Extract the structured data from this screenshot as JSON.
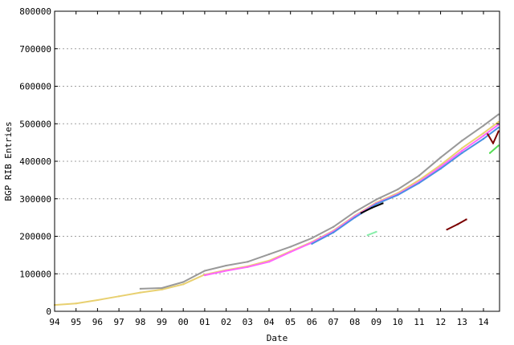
{
  "chart_data": {
    "type": "scatter",
    "title": "",
    "xlabel": "Date",
    "ylabel": "BGP RIB Entries",
    "xlim": [
      1994,
      2014.75
    ],
    "ylim": [
      0,
      800000
    ],
    "grid": "horizontal dashed",
    "x_ticks": [
      {
        "value": 1994,
        "label": "94"
      },
      {
        "value": 1995,
        "label": "95"
      },
      {
        "value": 1996,
        "label": "96"
      },
      {
        "value": 1997,
        "label": "97"
      },
      {
        "value": 1998,
        "label": "98"
      },
      {
        "value": 1999,
        "label": "99"
      },
      {
        "value": 2000,
        "label": "00"
      },
      {
        "value": 2001,
        "label": "01"
      },
      {
        "value": 2002,
        "label": "02"
      },
      {
        "value": 2003,
        "label": "03"
      },
      {
        "value": 2004,
        "label": "04"
      },
      {
        "value": 2005,
        "label": "05"
      },
      {
        "value": 2006,
        "label": "06"
      },
      {
        "value": 2007,
        "label": "07"
      },
      {
        "value": 2008,
        "label": "08"
      },
      {
        "value": 2009,
        "label": "09"
      },
      {
        "value": 2010,
        "label": "10"
      },
      {
        "value": 2011,
        "label": "11"
      },
      {
        "value": 2012,
        "label": "12"
      },
      {
        "value": 2013,
        "label": "13"
      },
      {
        "value": 2014,
        "label": "14"
      }
    ],
    "y_ticks": [
      {
        "value": 0,
        "label": "0"
      },
      {
        "value": 100000,
        "label": "100000"
      },
      {
        "value": 200000,
        "label": "200000"
      },
      {
        "value": 300000,
        "label": "300000"
      },
      {
        "value": 400000,
        "label": "400000"
      },
      {
        "value": 500000,
        "label": "500000"
      },
      {
        "value": 600000,
        "label": "600000"
      },
      {
        "value": 700000,
        "label": "700000"
      },
      {
        "value": 800000,
        "label": "800000"
      }
    ],
    "series": [
      {
        "color": "#e8d070",
        "x": [
          1994.0,
          1995.0,
          1996.0,
          1997.0,
          1998.0,
          1999.0,
          2000.0,
          2001.0,
          2002.0,
          2003.0,
          2004.0,
          2005.0,
          2006.0,
          2007.0,
          2008.0,
          2009.0,
          2010.0,
          2011.0,
          2012.0,
          2013.0,
          2014.0,
          2014.7
        ],
        "y": [
          17000,
          21000,
          30000,
          40000,
          50000,
          58000,
          72000,
          98000,
          110000,
          120000,
          135000,
          160000,
          185000,
          215000,
          255000,
          290000,
          315000,
          350000,
          390000,
          435000,
          475000,
          505000
        ]
      },
      {
        "color": "#999999",
        "x": [
          1998.0,
          1999.0,
          2000.0,
          2001.0,
          2002.0,
          2003.0,
          2004.0,
          2005.0,
          2006.0,
          2007.0,
          2008.0,
          2009.0,
          2010.0,
          2011.0,
          2012.0,
          2013.0,
          2014.0,
          2014.7
        ],
        "y": [
          60000,
          62000,
          78000,
          108000,
          122000,
          132000,
          152000,
          172000,
          195000,
          225000,
          265000,
          298000,
          325000,
          362000,
          410000,
          455000,
          495000,
          525000
        ]
      },
      {
        "color": "#ff66ff",
        "x": [
          2001.0,
          2002.0,
          2003.0,
          2004.0,
          2005.0,
          2006.0,
          2007.0,
          2008.0,
          2009.0,
          2010.0,
          2011.0,
          2012.0,
          2013.0,
          2014.0,
          2014.7
        ],
        "y": [
          96000,
          108000,
          118000,
          132000,
          158000,
          183000,
          213000,
          253000,
          288000,
          312000,
          345000,
          385000,
          428000,
          468000,
          498000
        ]
      },
      {
        "color": "#4a90e2",
        "x": [
          2006.0,
          2007.0,
          2008.0,
          2009.0,
          2010.0,
          2011.0,
          2012.0,
          2013.0,
          2014.0,
          2014.7
        ],
        "y": [
          180000,
          210000,
          250000,
          286000,
          310000,
          342000,
          380000,
          422000,
          460000,
          490000
        ]
      },
      {
        "color": "#000000",
        "x": [
          2008.3,
          2008.8,
          2009.3
        ],
        "y": [
          262000,
          276000,
          288000
        ]
      },
      {
        "color": "#55dd55",
        "x": [
          2014.3,
          2014.7
        ],
        "y": [
          422000,
          442000
        ]
      },
      {
        "color": "#7a0000",
        "x": [
          2012.3,
          2012.8,
          2013.2
        ],
        "y": [
          218000,
          232000,
          245000
        ]
      },
      {
        "color": "#7a0000",
        "x": [
          2014.2,
          2014.45,
          2014.7
        ],
        "y": [
          472000,
          448000,
          480000
        ]
      },
      {
        "color": "#88eeaa",
        "x": [
          2008.6,
          2009.0
        ],
        "y": [
          203000,
          212000
        ]
      }
    ]
  }
}
